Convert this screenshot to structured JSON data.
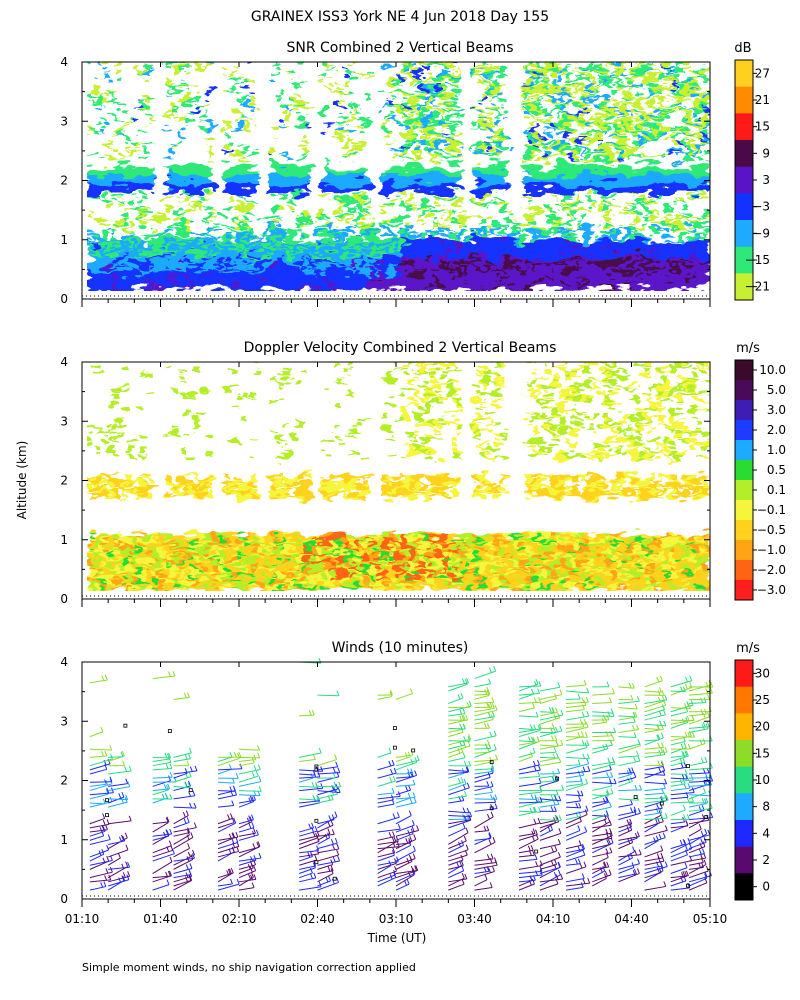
{
  "page": {
    "title": "GRAINEX ISS3 York NE   4 Jun 2018 Day 155",
    "ylabel": "Altitude (km)",
    "xlabel": "Time (UT)",
    "footer": "Simple moment winds, no ship navigation correction applied"
  },
  "x_axis": {
    "range_minutes_utc": [
      70,
      310
    ],
    "major_ticks": [
      {
        "minute": 70,
        "label": "01:10"
      },
      {
        "minute": 100,
        "label": "01:40"
      },
      {
        "minute": 130,
        "label": "02:10"
      },
      {
        "minute": 160,
        "label": "02:40"
      },
      {
        "minute": 190,
        "label": "03:10"
      },
      {
        "minute": 220,
        "label": "03:40"
      },
      {
        "minute": 250,
        "label": "04:10"
      },
      {
        "minute": 280,
        "label": "04:40"
      },
      {
        "minute": 310,
        "label": "05:10"
      }
    ]
  },
  "y_axis": {
    "range_km": [
      0,
      4
    ],
    "ticks": [
      0,
      1,
      2,
      3,
      4
    ],
    "tick_labels": [
      "0",
      "1",
      "2",
      "3",
      "4"
    ]
  },
  "chart_data": [
    {
      "type": "heatmap",
      "title": "SNR Combined 2 Vertical Beams",
      "colorbar": {
        "unit": "dB",
        "labels": [
          "27",
          "21",
          "15",
          "9",
          "3",
          "−3",
          "−9",
          "−15",
          "−21"
        ],
        "colors": [
          "#ffd020",
          "#ff8c00",
          "#ff1a1a",
          "#4a0a4a",
          "#5a14c8",
          "#1432ff",
          "#1eaaff",
          "#2ee878",
          "#c8f032"
        ]
      },
      "x_range_utc": [
        "01:10",
        "05:10"
      ],
      "y_range_km": [
        0,
        4
      ],
      "bands": [
        {
          "alt_km": [
            0.1,
            0.5
          ],
          "snr_db": -6
        },
        {
          "alt_km": [
            0.5,
            1.0
          ],
          "snr_db": -12
        },
        {
          "alt_km": [
            1.8,
            2.1
          ],
          "snr_db": -5
        },
        {
          "alt_km": [
            2.1,
            4.0
          ],
          "snr_db": -18
        }
      ]
    },
    {
      "type": "heatmap",
      "title": "Doppler Velocity Combined 2 Vertical Beams",
      "colorbar": {
        "unit": "m/s",
        "labels": [
          "10.0",
          "5.0",
          "3.0",
          "2.0",
          "1.0",
          "0.5",
          "0.1",
          "−0.1",
          "−0.5",
          "−1.0",
          "−2.0",
          "−3.0"
        ],
        "colors": [
          "#3a0a2a",
          "#4a0a5a",
          "#3c1eb4",
          "#1e3cff",
          "#1eaaff",
          "#28dc32",
          "#b4ee28",
          "#f5f53c",
          "#ffd21e",
          "#ffa514",
          "#ff6414",
          "#ff1e1e"
        ]
      },
      "x_range_utc": [
        "01:10",
        "05:10"
      ],
      "y_range_km": [
        0,
        4
      ],
      "bands": [
        {
          "alt_km": [
            0.1,
            1.1
          ],
          "velocity_ms": -0.4
        },
        {
          "alt_km": [
            1.7,
            2.1
          ],
          "velocity_ms": -0.3
        },
        {
          "alt_km": [
            2.1,
            4.0
          ],
          "velocity_ms": 0.1
        }
      ]
    },
    {
      "type": "scatter",
      "title": "Winds (10 minutes)",
      "colorbar": {
        "unit": "m/s",
        "labels": [
          "30",
          "25",
          "20",
          "15",
          "10",
          "8",
          "4",
          "2",
          "0"
        ],
        "colors": [
          "#ff1a1a",
          "#ff7800",
          "#ffb400",
          "#8cdc28",
          "#28dc82",
          "#1eaaff",
          "#1e28ff",
          "#5a0a6e",
          "#000000"
        ]
      },
      "x_range_utc": [
        "01:10",
        "05:10"
      ],
      "y_range_km": [
        0,
        4
      ],
      "profile_times_utc": [
        "01:13",
        "01:20",
        "01:37",
        "01:45",
        "02:02",
        "02:10",
        "02:33",
        "02:40",
        "03:03",
        "03:10",
        "03:30",
        "03:40",
        "03:57",
        "04:05",
        "04:15",
        "04:25",
        "04:35",
        "04:45",
        "04:55",
        "05:02"
      ]
    }
  ]
}
